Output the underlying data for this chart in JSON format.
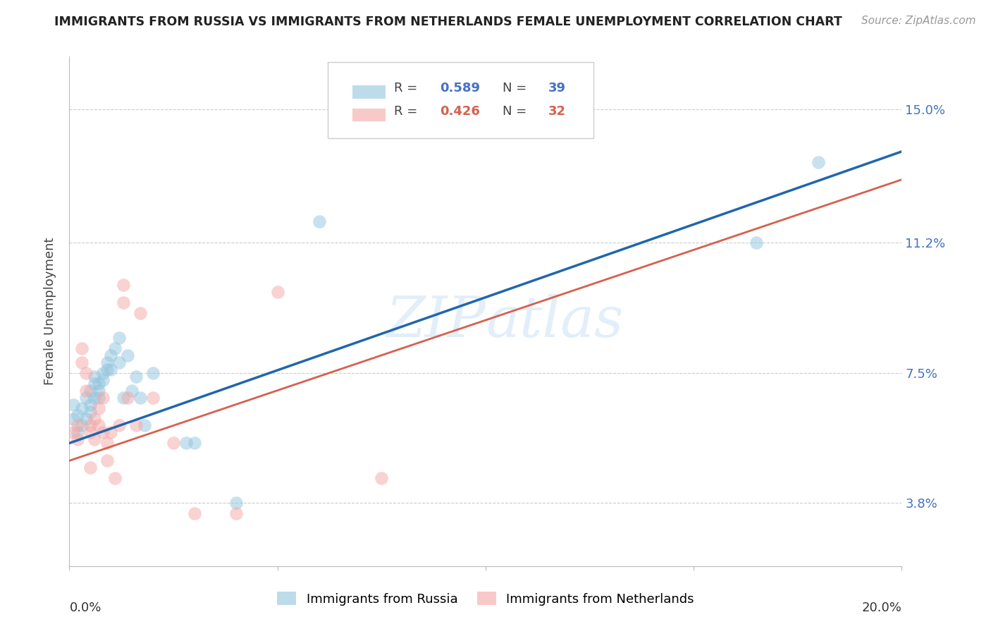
{
  "title": "IMMIGRANTS FROM RUSSIA VS IMMIGRANTS FROM NETHERLANDS FEMALE UNEMPLOYMENT CORRELATION CHART",
  "source": "Source: ZipAtlas.com",
  "ylabel": "Female Unemployment",
  "ytick_labels": [
    "3.8%",
    "7.5%",
    "11.2%",
    "15.0%"
  ],
  "ytick_values": [
    0.038,
    0.075,
    0.112,
    0.15
  ],
  "xlim": [
    0.0,
    0.2
  ],
  "ylim": [
    0.02,
    0.165
  ],
  "watermark": "ZIPatlas",
  "russia_color": "#92c5de",
  "netherlands_color": "#f4a6a6",
  "russia_line_color": "#2166ac",
  "netherlands_line_color": "#d6604d",
  "russia_scatter": [
    [
      0.001,
      0.066
    ],
    [
      0.001,
      0.062
    ],
    [
      0.002,
      0.058
    ],
    [
      0.002,
      0.063
    ],
    [
      0.003,
      0.06
    ],
    [
      0.003,
      0.065
    ],
    [
      0.004,
      0.062
    ],
    [
      0.004,
      0.068
    ],
    [
      0.005,
      0.064
    ],
    [
      0.005,
      0.07
    ],
    [
      0.005,
      0.066
    ],
    [
      0.006,
      0.068
    ],
    [
      0.006,
      0.072
    ],
    [
      0.006,
      0.074
    ],
    [
      0.007,
      0.07
    ],
    [
      0.007,
      0.068
    ],
    [
      0.007,
      0.072
    ],
    [
      0.008,
      0.075
    ],
    [
      0.008,
      0.073
    ],
    [
      0.009,
      0.076
    ],
    [
      0.009,
      0.078
    ],
    [
      0.01,
      0.08
    ],
    [
      0.01,
      0.076
    ],
    [
      0.011,
      0.082
    ],
    [
      0.012,
      0.078
    ],
    [
      0.012,
      0.085
    ],
    [
      0.013,
      0.068
    ],
    [
      0.014,
      0.08
    ],
    [
      0.015,
      0.07
    ],
    [
      0.016,
      0.074
    ],
    [
      0.017,
      0.068
    ],
    [
      0.018,
      0.06
    ],
    [
      0.02,
      0.075
    ],
    [
      0.028,
      0.055
    ],
    [
      0.03,
      0.055
    ],
    [
      0.04,
      0.038
    ],
    [
      0.06,
      0.118
    ],
    [
      0.165,
      0.112
    ],
    [
      0.18,
      0.135
    ]
  ],
  "netherlands_scatter": [
    [
      0.001,
      0.058
    ],
    [
      0.002,
      0.06
    ],
    [
      0.002,
      0.056
    ],
    [
      0.003,
      0.082
    ],
    [
      0.003,
      0.078
    ],
    [
      0.004,
      0.075
    ],
    [
      0.004,
      0.07
    ],
    [
      0.005,
      0.06
    ],
    [
      0.005,
      0.058
    ],
    [
      0.005,
      0.048
    ],
    [
      0.006,
      0.062
    ],
    [
      0.006,
      0.056
    ],
    [
      0.007,
      0.065
    ],
    [
      0.007,
      0.06
    ],
    [
      0.008,
      0.068
    ],
    [
      0.008,
      0.058
    ],
    [
      0.009,
      0.055
    ],
    [
      0.009,
      0.05
    ],
    [
      0.01,
      0.058
    ],
    [
      0.011,
      0.045
    ],
    [
      0.012,
      0.06
    ],
    [
      0.013,
      0.095
    ],
    [
      0.013,
      0.1
    ],
    [
      0.014,
      0.068
    ],
    [
      0.016,
      0.06
    ],
    [
      0.017,
      0.092
    ],
    [
      0.02,
      0.068
    ],
    [
      0.025,
      0.055
    ],
    [
      0.03,
      0.035
    ],
    [
      0.04,
      0.035
    ],
    [
      0.05,
      0.098
    ],
    [
      0.075,
      0.045
    ]
  ],
  "russia_line_x": [
    0.0,
    0.2
  ],
  "russia_line_y": [
    0.055,
    0.138
  ],
  "netherlands_line_x": [
    0.0,
    0.2
  ],
  "netherlands_line_y": [
    0.05,
    0.13
  ],
  "background_color": "#ffffff",
  "grid_color": "#cccccc"
}
